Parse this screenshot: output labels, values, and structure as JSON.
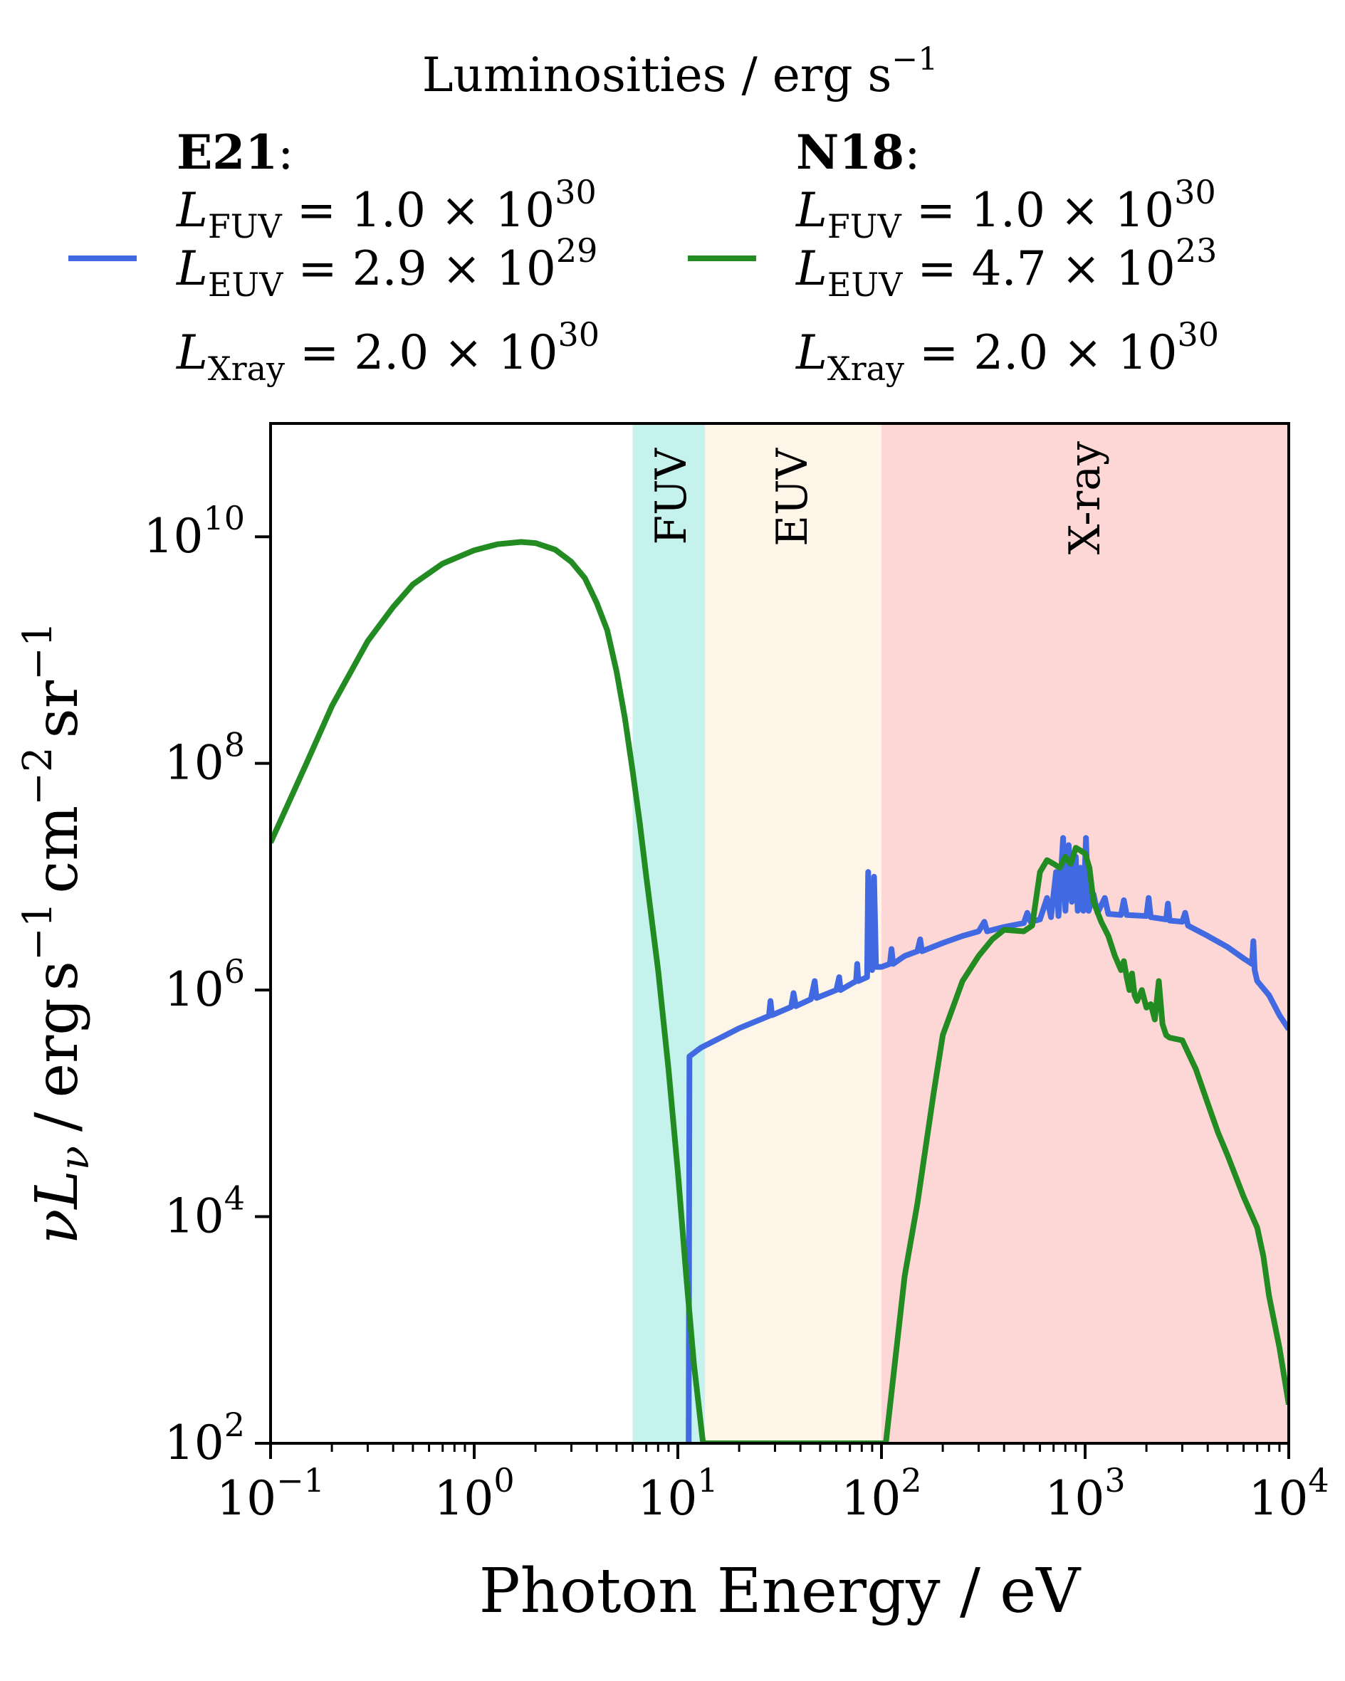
{
  "chart_data": {
    "type": "line",
    "xlabel": "Photon Energy / eV",
    "ylabel_parts": {
      "nu": "ν",
      "L": "L",
      "sub": "ν",
      "slash": "/",
      "erg": "erg",
      "s": "s",
      "exp_s": "−1",
      "cm": "cm",
      "exp_cm": "−2",
      "sr": "sr",
      "exp_sr": "−1"
    },
    "x_scale": "log",
    "y_scale": "log",
    "xlim": [
      0.1,
      10000
    ],
    "ylim": [
      100,
      100000000000
    ],
    "x_ticks": [
      {
        "value": 0.1,
        "base": "10",
        "exp": "−1"
      },
      {
        "value": 1,
        "base": "10",
        "exp": "0"
      },
      {
        "value": 10,
        "base": "10",
        "exp": "1"
      },
      {
        "value": 100,
        "base": "10",
        "exp": "2"
      },
      {
        "value": 1000,
        "base": "10",
        "exp": "3"
      },
      {
        "value": 10000,
        "base": "10",
        "exp": "4"
      }
    ],
    "y_ticks": [
      {
        "value": 100,
        "base": "10",
        "exp": "2"
      },
      {
        "value": 10000,
        "base": "10",
        "exp": "4"
      },
      {
        "value": 1000000,
        "base": "10",
        "exp": "6"
      },
      {
        "value": 100000000,
        "base": "10",
        "exp": "8"
      },
      {
        "value": 10000000000,
        "base": "10",
        "exp": "10"
      }
    ],
    "bands": [
      {
        "label": "FUV",
        "x_range": [
          6,
          13.6
        ],
        "color": "#c5f2ec"
      },
      {
        "label": "EUV",
        "x_range": [
          13.6,
          100
        ],
        "color": "#fdf5e8"
      },
      {
        "label": "X-ray",
        "x_range": [
          100,
          10000
        ],
        "color": "#fdd7d5"
      }
    ],
    "legend": {
      "title_text": "Luminosities / erg s",
      "title_exp": "−1",
      "entries": [
        {
          "name": "E21",
          "color": "#4169e1",
          "lines": [
            {
              "sub": "FUV",
              "mant": "1.0",
              "exp": "30"
            },
            {
              "sub": "EUV",
              "mant": "2.9",
              "exp": "29"
            },
            {
              "sub": "Xray",
              "mant": "2.0",
              "exp": "30"
            }
          ]
        },
        {
          "name": "N18",
          "color": "#228b22",
          "lines": [
            {
              "sub": "FUV",
              "mant": "1.0",
              "exp": "30"
            },
            {
              "sub": "EUV",
              "mant": "4.7",
              "exp": "23"
            },
            {
              "sub": "Xray",
              "mant": "2.0",
              "exp": "30"
            }
          ]
        }
      ]
    },
    "series": [
      {
        "name": "E21",
        "color": "#4169e1",
        "points": [
          [
            11.3,
            100
          ],
          [
            11.4,
            260000.0
          ],
          [
            13,
            310000.0
          ],
          [
            20,
            460000.0
          ],
          [
            28,
            590000.0
          ],
          [
            28.5,
            800000.0
          ],
          [
            29,
            600000.0
          ],
          [
            36,
            710000.0
          ],
          [
            37,
            940000.0
          ],
          [
            38,
            720000.0
          ],
          [
            45,
            830000.0
          ],
          [
            47,
            1200000.0
          ],
          [
            48,
            850000.0
          ],
          [
            60,
            1000000.0
          ],
          [
            62,
            1300000.0
          ],
          [
            63,
            1000000.0
          ],
          [
            75,
            1200000.0
          ],
          [
            76,
            1700000.0
          ],
          [
            77,
            1200000.0
          ],
          [
            85,
            1300000.0
          ],
          [
            86,
            11000000.0
          ],
          [
            87,
            1600000.0
          ],
          [
            90,
            1500000.0
          ],
          [
            92,
            10000000.0
          ],
          [
            94,
            1600000.0
          ],
          [
            100,
            1600000.0
          ],
          [
            110,
            1700000.0
          ],
          [
            112,
            2300000.0
          ],
          [
            114,
            1700000.0
          ],
          [
            130,
            2000000.0
          ],
          [
            150,
            2200000.0
          ],
          [
            155,
            2800000.0
          ],
          [
            158,
            2200000.0
          ],
          [
            200,
            2600000.0
          ],
          [
            250,
            3000000.0
          ],
          [
            300,
            3300000.0
          ],
          [
            320,
            4000000.0
          ],
          [
            330,
            3300000.0
          ],
          [
            400,
            3600000.0
          ],
          [
            500,
            3900000.0
          ],
          [
            520,
            4800000.0
          ],
          [
            540,
            4000000.0
          ],
          [
            600,
            4200000.0
          ],
          [
            650,
            6500000.0
          ],
          [
            680,
            4400000.0
          ],
          [
            720,
            11000000.0
          ],
          [
            740,
            4500000.0
          ],
          [
            780,
            22000000.0
          ],
          [
            800,
            5000000.0
          ],
          [
            830,
            19000000.0
          ],
          [
            860,
            6000000.0
          ],
          [
            900,
            15000000.0
          ],
          [
            920,
            5000000.0
          ],
          [
            950,
            12000000.0
          ],
          [
            980,
            5000000.0
          ],
          [
            1010,
            22000000.0
          ],
          [
            1040,
            5000000.0
          ],
          [
            1100,
            7000000.0
          ],
          [
            1150,
            4800000.0
          ],
          [
            1250,
            6500000.0
          ],
          [
            1300,
            4700000.0
          ],
          [
            1500,
            4600000.0
          ],
          [
            1550,
            6200000.0
          ],
          [
            1600,
            4600000.0
          ],
          [
            2000,
            4500000.0
          ],
          [
            2050,
            6500000.0
          ],
          [
            2100,
            4400000.0
          ],
          [
            2500,
            4200000.0
          ],
          [
            2550,
            5800000.0
          ],
          [
            2600,
            4100000.0
          ],
          [
            3000,
            4000000.0
          ],
          [
            3100,
            4800000.0
          ],
          [
            3200,
            3700000.0
          ],
          [
            4000,
            3000000.0
          ],
          [
            5000,
            2400000.0
          ],
          [
            6000,
            1900000.0
          ],
          [
            6600,
            1700000.0
          ],
          [
            6700,
            2700000.0
          ],
          [
            6800,
            1500000.0
          ],
          [
            7000,
            1200000.0
          ],
          [
            8000,
            900000.0
          ],
          [
            9000,
            600000.0
          ],
          [
            10000,
            450000.0
          ]
        ]
      },
      {
        "name": "N18",
        "color": "#228b22",
        "points": [
          [
            0.1,
            20000000.0
          ],
          [
            0.15,
            100000000.0
          ],
          [
            0.2,
            320000000.0
          ],
          [
            0.3,
            1200000000.0
          ],
          [
            0.4,
            2400000000.0
          ],
          [
            0.5,
            3800000000.0
          ],
          [
            0.7,
            5800000000.0
          ],
          [
            1.0,
            7600000000.0
          ],
          [
            1.3,
            8600000000.0
          ],
          [
            1.7,
            9000000000.0
          ],
          [
            2.0,
            8800000000.0
          ],
          [
            2.5,
            7700000000.0
          ],
          [
            3.0,
            6000000000.0
          ],
          [
            3.5,
            4300000000.0
          ],
          [
            4.0,
            2600000000.0
          ],
          [
            4.5,
            1500000000.0
          ],
          [
            5.0,
            650000000.0
          ],
          [
            5.5,
            250000000.0
          ],
          [
            6.0,
            85000000.0
          ],
          [
            6.5,
            30000000.0
          ],
          [
            7.0,
            10000000.0
          ],
          [
            8.0,
            1500000.0
          ],
          [
            9.0,
            200000.0
          ],
          [
            10.0,
            25000.0
          ],
          [
            11.0,
            3000.0
          ],
          [
            12.0,
            500
          ],
          [
            13.3,
            100
          ],
          [
            105,
            100
          ],
          [
            130,
            3000.0
          ],
          [
            150,
            13000.0
          ],
          [
            180,
            120000.0
          ],
          [
            200,
            400000.0
          ],
          [
            250,
            1200000.0
          ],
          [
            300,
            2000000.0
          ],
          [
            350,
            2800000.0
          ],
          [
            400,
            3400000.0
          ],
          [
            500,
            3300000.0
          ],
          [
            550,
            3700000.0
          ],
          [
            600,
            11000000.0
          ],
          [
            650,
            14000000.0
          ],
          [
            700,
            13000000.0
          ],
          [
            750,
            12000000.0
          ],
          [
            800,
            15000000.0
          ],
          [
            850,
            13000000.0
          ],
          [
            900,
            18000000.0
          ],
          [
            950,
            17000000.0
          ],
          [
            1000,
            16000000.0
          ],
          [
            1050,
            12000000.0
          ],
          [
            1100,
            6000000.0
          ],
          [
            1200,
            4000000.0
          ],
          [
            1300,
            3000000.0
          ],
          [
            1400,
            2000000.0
          ],
          [
            1500,
            1500000.0
          ],
          [
            1550,
            1800000.0
          ],
          [
            1600,
            1300000.0
          ],
          [
            1650,
            1000000.0
          ],
          [
            1700,
            1400000.0
          ],
          [
            1750,
            900000.0
          ],
          [
            1800,
            800000.0
          ],
          [
            1900,
            1000000.0
          ],
          [
            2000,
            700000.0
          ],
          [
            2100,
            750000.0
          ],
          [
            2200,
            550000.0
          ],
          [
            2300,
            1200000.0
          ],
          [
            2400,
            500000.0
          ],
          [
            2500,
            400000.0
          ],
          [
            2600,
            380000.0
          ],
          [
            3000,
            360000.0
          ],
          [
            3500,
            200000.0
          ],
          [
            4000,
            100000.0
          ],
          [
            4500,
            55000.0
          ],
          [
            5000,
            35000.0
          ],
          [
            6000,
            15000.0
          ],
          [
            7000,
            8000.0
          ],
          [
            7500,
            4500.0
          ],
          [
            8000,
            2000.0
          ],
          [
            9000,
            700
          ],
          [
            10000,
            220
          ]
        ]
      }
    ]
  }
}
